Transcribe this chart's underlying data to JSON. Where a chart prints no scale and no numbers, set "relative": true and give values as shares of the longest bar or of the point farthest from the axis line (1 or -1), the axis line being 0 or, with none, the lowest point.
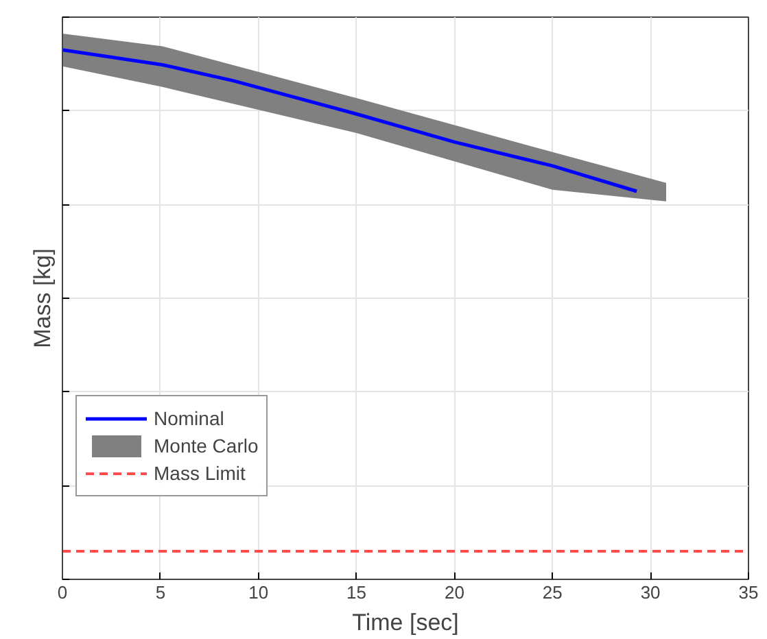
{
  "chart_data": {
    "type": "line",
    "xlabel": "Time [sec]",
    "ylabel": "Mass [kg]",
    "relative": true,
    "xlim": [
      0,
      35
    ],
    "xticks": [
      0,
      5,
      10,
      15,
      20,
      25,
      30,
      35
    ],
    "grid": true,
    "legend": "bottom left",
    "tick_labels": "x",
    "series": [
      {
        "name": "Nominal",
        "color": "#0000ff",
        "x": [
          0,
          5.1,
          8.7,
          15,
          20,
          25,
          29.3
        ],
        "values": [
          1.0,
          0.972,
          0.942,
          0.879,
          0.826,
          0.781,
          0.733
        ]
      },
      {
        "name": "Monte Carlo",
        "color": "#808080",
        "x": [
          0,
          5.1,
          15,
          25,
          30.8
        ],
        "values": [
          null,
          null,
          null,
          null,
          null
        ],
        "lower": [
          0.969,
          0.93,
          0.843,
          0.736,
          0.714
        ],
        "upper": [
          1.031,
          1.007,
          0.909,
          0.807,
          0.749
        ]
      }
    ],
    "ref_lines": [
      {
        "axis": "y",
        "value": 0.053,
        "label": "Mass Limit",
        "color": "#ff4d4d",
        "line_style": "dashed"
      }
    ]
  }
}
